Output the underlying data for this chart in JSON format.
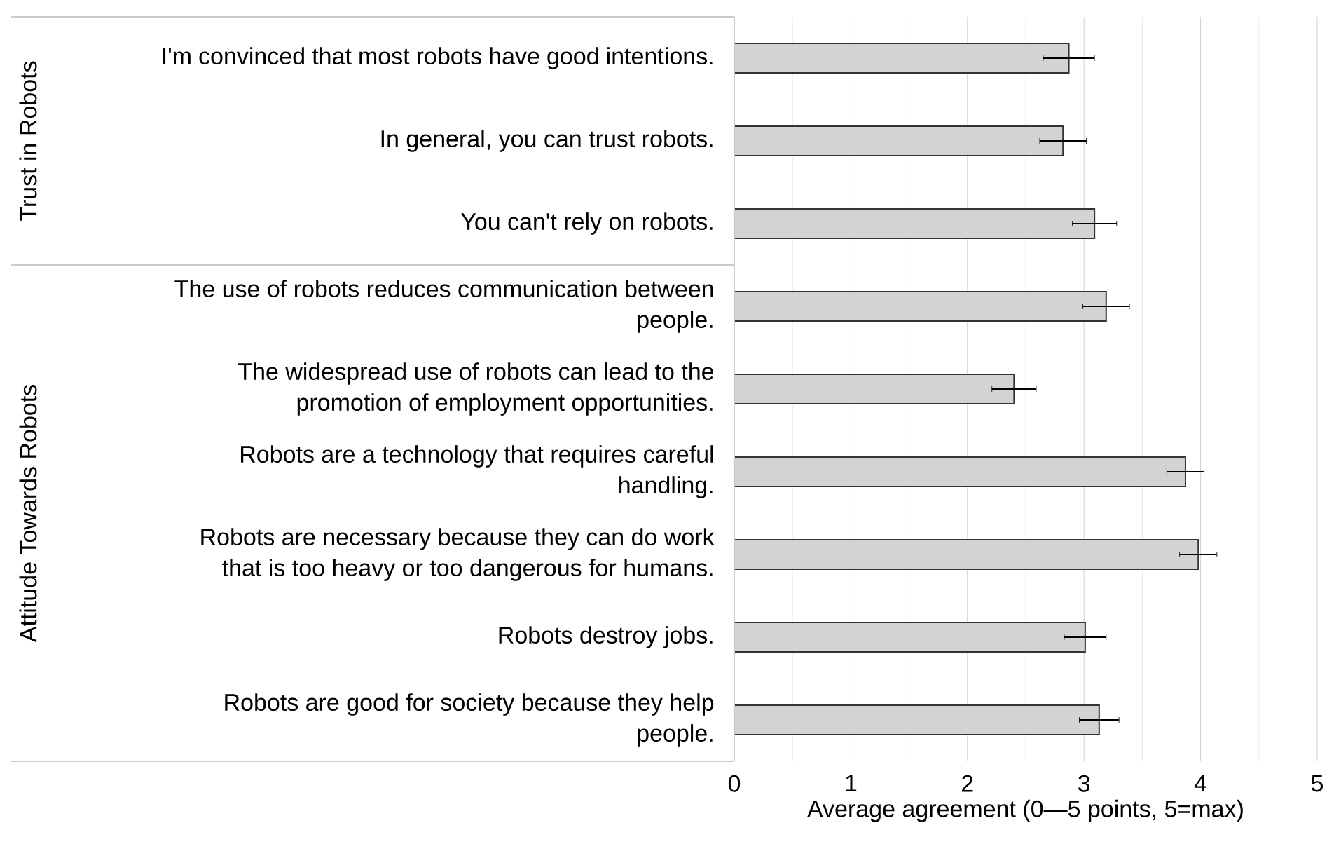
{
  "chart_data": {
    "type": "bar",
    "orientation": "horizontal",
    "xlabel": "Average agreement (0—5 points, 5=max)",
    "annotations": [
      "Trust in Robots",
      "Attitude Towards Robots"
    ],
    "categories": [
      "I'm convinced that most robots have good intentions.",
      "In general, you can trust robots.",
      "You can't rely on robots.",
      "The use of robots reduces communication between people.",
      "The widespread use of robots can lead to the promotion of employment opportunities.",
      "Robots are a technology that requires careful handling.",
      "Robots are necessary because they can do work that is too heavy or too dangerous for humans.",
      "Robots destroy jobs.",
      "Robots are good for society because they help people."
    ],
    "values": [
      2.87,
      2.82,
      3.09,
      3.19,
      2.4,
      3.87,
      3.98,
      3.01,
      3.13
    ],
    "errors": [
      0.22,
      0.2,
      0.19,
      0.2,
      0.19,
      0.16,
      0.16,
      0.18,
      0.17
    ],
    "color": "#d3d3d3",
    "xlim": [
      0,
      5
    ],
    "xticks": [
      0,
      1,
      2,
      3,
      4,
      5
    ],
    "grid": "x"
  }
}
